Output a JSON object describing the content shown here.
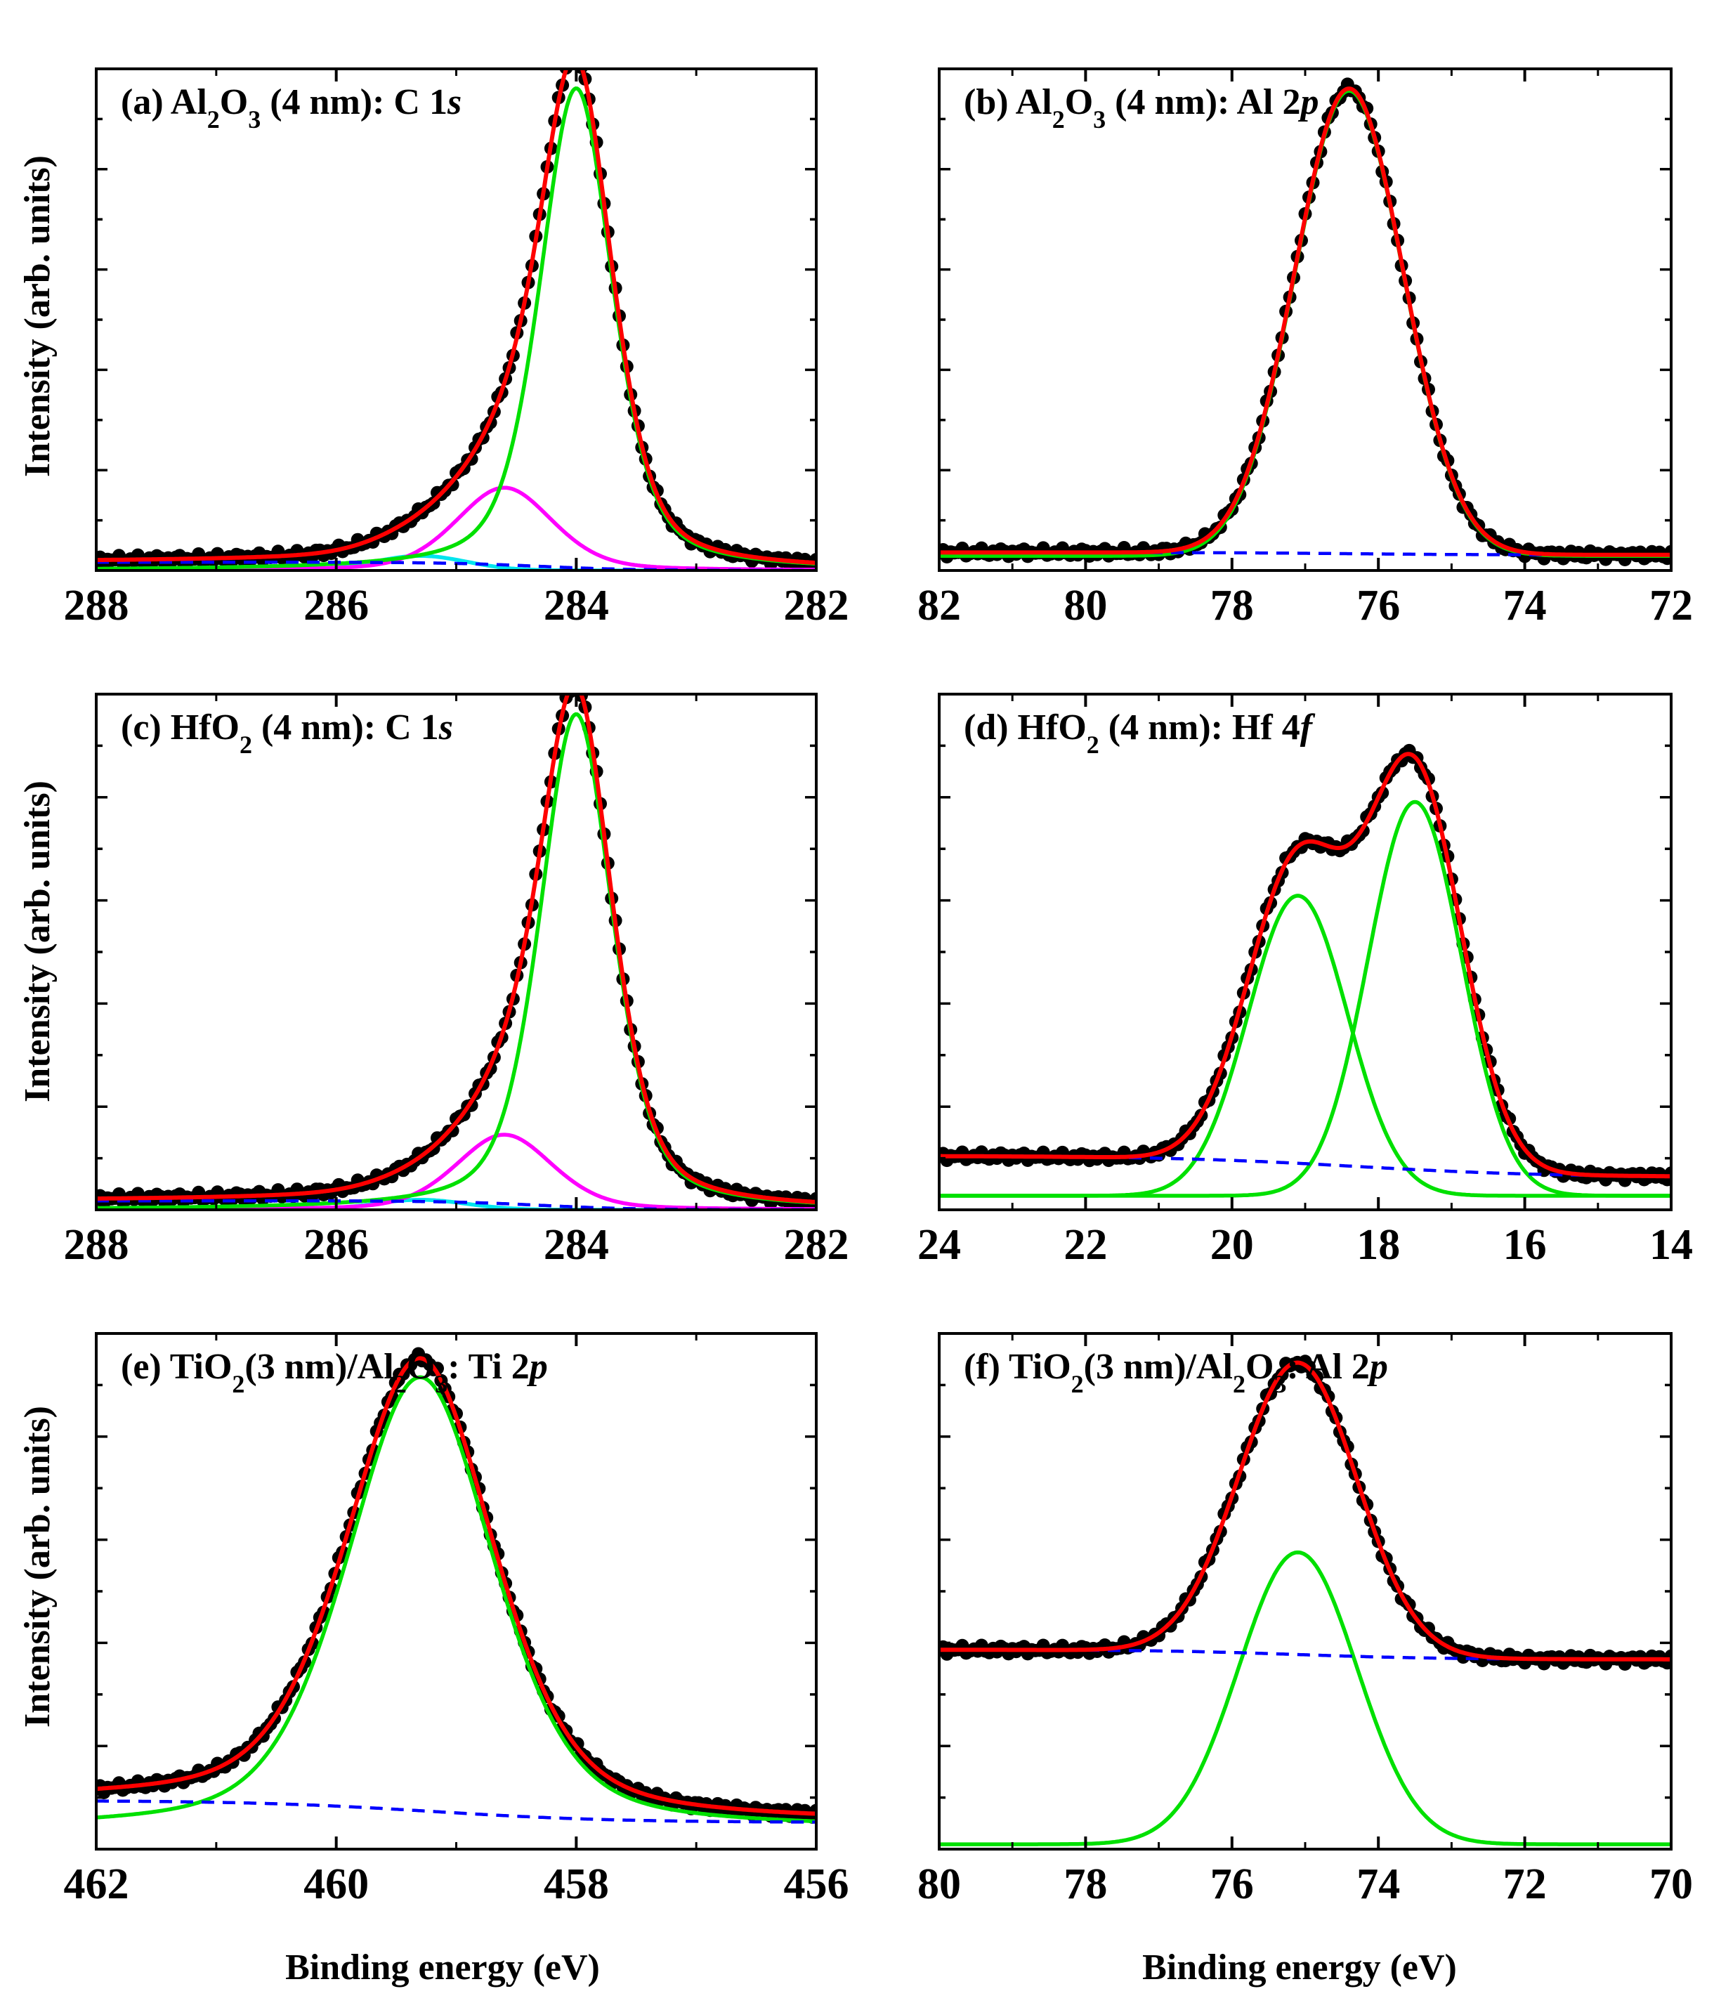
{
  "figure": {
    "ylabel": "Intensity (arb. units)",
    "xlabel": "Binding energy (eV)"
  },
  "colors": {
    "data_points": "#000000",
    "fit_envelope": "#ff0000",
    "main_component": "#00e000",
    "secondary_component": "#ff00ff",
    "tertiary_component": "#00e5ee",
    "background": "#0000ff"
  },
  "chart_data": [
    {
      "id": "a",
      "type": "line",
      "title": [
        {
          "t": "(a) Al"
        },
        {
          "t": "2",
          "sub": true
        },
        {
          "t": "O"
        },
        {
          "t": "3",
          "sub": true
        },
        {
          "t": " (4 nm): C 1"
        },
        {
          "t": "s",
          "italic": true
        }
      ],
      "xlim": [
        288,
        282
      ],
      "xticks": [
        288,
        286,
        284,
        282
      ],
      "ylim": [
        0,
        1.03
      ],
      "has_data_points": true,
      "peaks": [
        {
          "series": "main_component",
          "center": 284.0,
          "amp": 0.99,
          "fwhm": 0.72,
          "eta": 0.45
        },
        {
          "series": "secondary_component",
          "center": 284.6,
          "amp": 0.17,
          "fwhm": 0.95,
          "eta": 0.3
        },
        {
          "series": "tertiary_component",
          "center": 285.3,
          "amp": 0.03,
          "fwhm": 0.9,
          "eta": 0.0
        }
      ],
      "background": {
        "left": 0.017,
        "right": 0.0,
        "center": 284.3,
        "width": 0.4
      },
      "offset": 0.0
    },
    {
      "id": "b",
      "type": "line",
      "title": [
        {
          "t": "(b) Al"
        },
        {
          "t": "2",
          "sub": true
        },
        {
          "t": "O"
        },
        {
          "t": "3",
          "sub": true
        },
        {
          "t": " (4 nm): Al 2"
        },
        {
          "t": "p",
          "italic": true
        }
      ],
      "xlim": [
        82,
        72
      ],
      "xticks": [
        82,
        80,
        78,
        76,
        74,
        72
      ],
      "ylim": [
        0,
        1.03
      ],
      "has_data_points": true,
      "peaks": [
        {
          "series": "main_component",
          "center": 76.4,
          "amp": 0.955,
          "fwhm": 1.75,
          "eta": 0.0
        }
      ],
      "background": {
        "left": 0.037,
        "right": 0.032,
        "center": 76.4,
        "width": 0.9
      },
      "offset": 0.03
    },
    {
      "id": "c",
      "type": "line",
      "title": [
        {
          "t": "(c) HfO"
        },
        {
          "t": "2",
          "sub": true
        },
        {
          "t": " (4 nm): C 1"
        },
        {
          "t": "s",
          "italic": true
        }
      ],
      "xlim": [
        288,
        282
      ],
      "xticks": [
        288,
        286,
        284,
        282
      ],
      "ylim": [
        0,
        1.03
      ],
      "has_data_points": true,
      "peaks": [
        {
          "series": "main_component",
          "center": 284.0,
          "amp": 0.99,
          "fwhm": 0.72,
          "eta": 0.45
        },
        {
          "series": "secondary_component",
          "center": 284.6,
          "amp": 0.15,
          "fwhm": 0.95,
          "eta": 0.3
        },
        {
          "series": "tertiary_component",
          "center": 285.3,
          "amp": 0.02,
          "fwhm": 0.9,
          "eta": 0.0
        }
      ],
      "background": {
        "left": 0.018,
        "right": 0.0,
        "center": 284.3,
        "width": 0.4
      },
      "offset": 0.0
    },
    {
      "id": "d",
      "type": "line",
      "title": [
        {
          "t": "(d) HfO"
        },
        {
          "t": "2",
          "sub": true
        },
        {
          "t": " (4 nm): Hf 4"
        },
        {
          "t": "f",
          "italic": true
        }
      ],
      "xlim": [
        24,
        14
      ],
      "xticks": [
        24,
        22,
        20,
        18,
        16,
        14
      ],
      "ylim": [
        0,
        1.1
      ],
      "has_data_points": true,
      "peaks": [
        {
          "series": "main_component",
          "center": 19.1,
          "amp": 0.64,
          "fwhm": 1.6,
          "eta": 0.0
        },
        {
          "series": "main_component",
          "center": 17.5,
          "amp": 0.84,
          "fwhm": 1.5,
          "eta": 0.0
        }
      ],
      "background": {
        "left": 0.115,
        "right": 0.07,
        "center": 18.3,
        "width": 1.3
      },
      "offset": 0.03
    },
    {
      "id": "e",
      "type": "line",
      "title": [
        {
          "t": "(e) TiO"
        },
        {
          "t": "2",
          "sub": true
        },
        {
          "t": "(3 nm)/Al"
        },
        {
          "t": "2",
          "sub": true
        },
        {
          "t": "O"
        },
        {
          "t": "3",
          "sub": true
        },
        {
          "t": ": Ti 2"
        },
        {
          "t": "p",
          "italic": true
        }
      ],
      "xlim": [
        462,
        456
      ],
      "xticks": [
        462,
        460,
        458,
        456
      ],
      "ylim": [
        0,
        1.06
      ],
      "has_data_points": true,
      "peaks": [
        {
          "series": "main_component",
          "center": 459.3,
          "amp": 0.93,
          "fwhm": 1.45,
          "eta": 0.4
        }
      ],
      "background": {
        "left": 0.1,
        "right": 0.055,
        "center": 459.2,
        "width": 0.75
      },
      "offset": 0.04
    },
    {
      "id": "f",
      "type": "line",
      "title": [
        {
          "t": "(f) TiO"
        },
        {
          "t": "2",
          "sub": true
        },
        {
          "t": "(3 nm)/Al"
        },
        {
          "t": "2",
          "sub": true
        },
        {
          "t": "O"
        },
        {
          "t": "3",
          "sub": true
        },
        {
          "t": ": Al 2"
        },
        {
          "t": "p",
          "italic": true
        }
      ],
      "xlim": [
        80,
        70
      ],
      "xticks": [
        80,
        78,
        76,
        74,
        72,
        70
      ],
      "ylim": [
        0,
        1.06
      ],
      "has_data_points": true,
      "peaks": [
        {
          "series": "main_component",
          "center": 75.1,
          "amp": 0.6,
          "fwhm": 1.9,
          "eta": 0.0
        }
      ],
      "background": {
        "left": 0.41,
        "right": 0.39,
        "center": 75.1,
        "width": 1.0
      },
      "offset": 0.01
    }
  ]
}
